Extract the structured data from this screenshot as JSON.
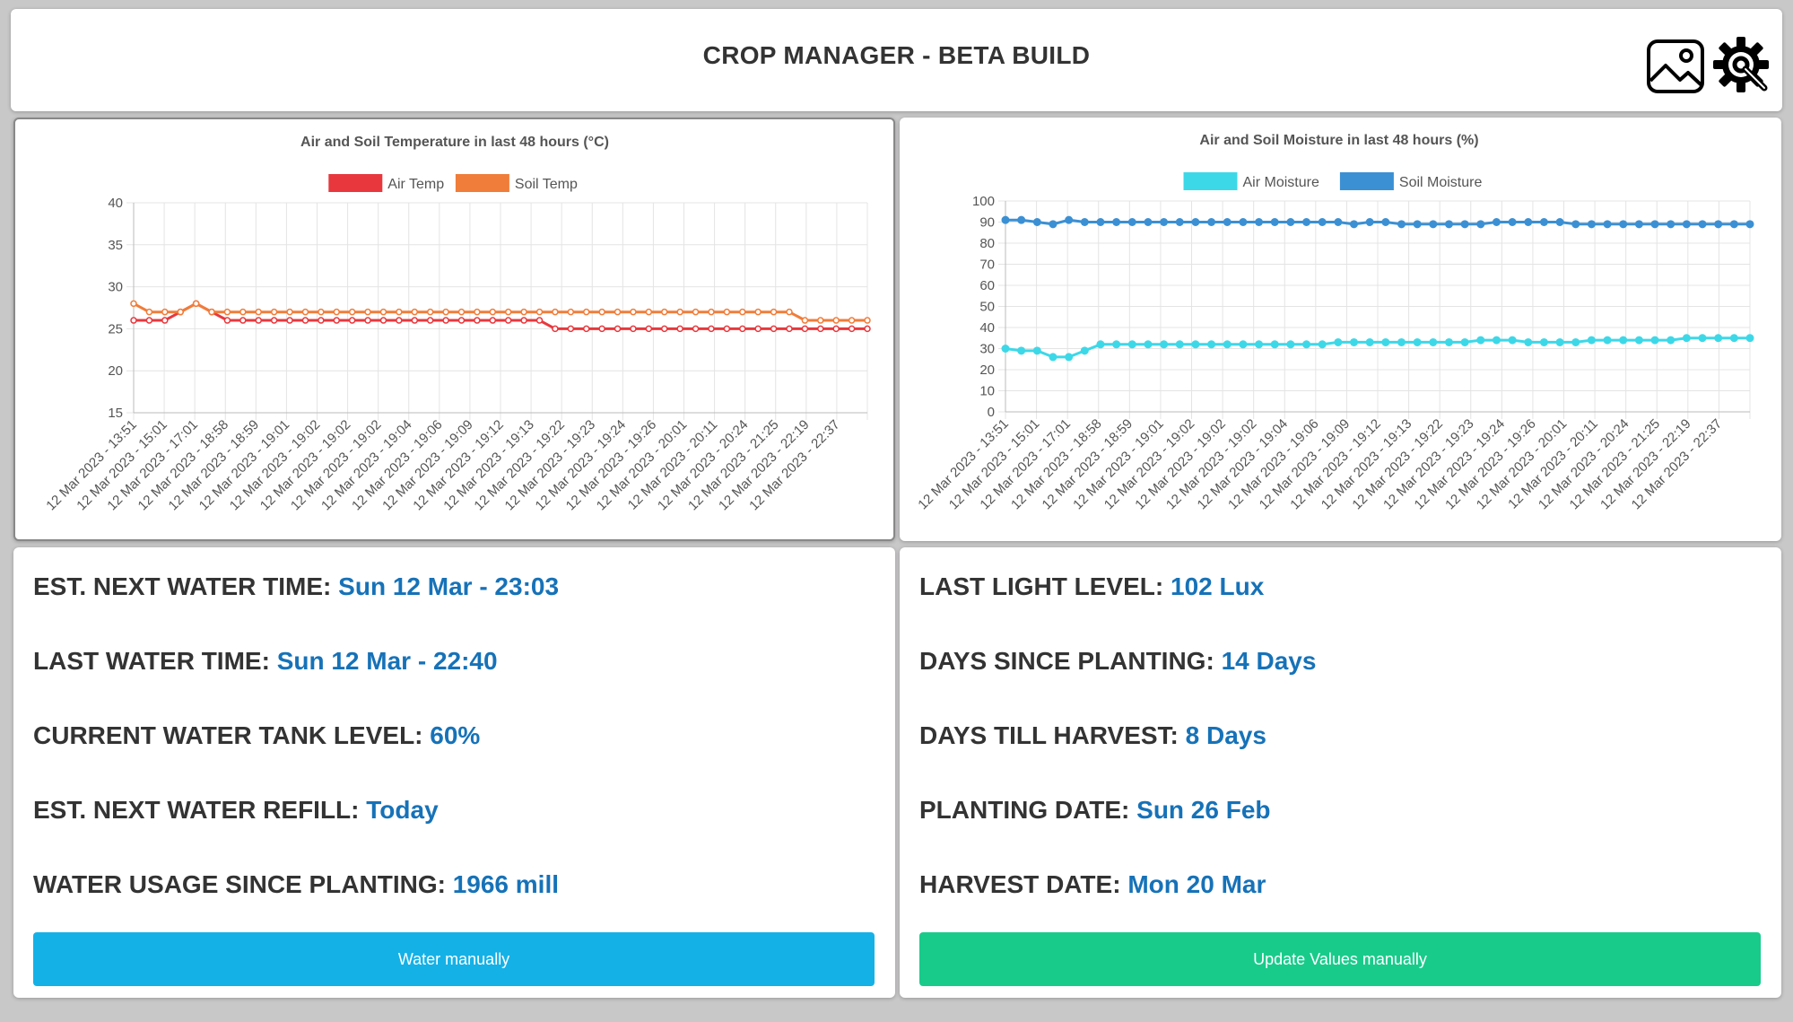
{
  "header": {
    "title": "CROP MANAGER - BETA BUILD",
    "image_icon": "image-icon",
    "settings_icon": "gear-wrench-icon"
  },
  "colors": {
    "air_temp": "#e8383d",
    "soil_temp": "#f07d3a",
    "air_moisture": "#3dd8e8",
    "soil_moisture": "#3b90d4",
    "value_text": "#1672b8",
    "water_button": "#14b1e7",
    "update_button": "#19cb8b"
  },
  "charts": [
    {
      "title": "Air and Soil Temperature in last 48 hours (°C)",
      "legend": [
        "Air Temp",
        "Soil Temp"
      ],
      "y_ticks": [
        "40",
        "35",
        "30",
        "25",
        "20",
        "15"
      ],
      "x_labels": [
        "12 Mar 2023 - 13:51",
        "12 Mar 2023 - 15:01",
        "12 Mar 2023 - 17:01",
        "12 Mar 2023 - 18:58",
        "12 Mar 2023 - 18:59",
        "12 Mar 2023 - 19:01",
        "12 Mar 2023 - 19:02",
        "12 Mar 2023 - 19:02",
        "12 Mar 2023 - 19:02",
        "12 Mar 2023 - 19:04",
        "12 Mar 2023 - 19:06",
        "12 Mar 2023 - 19:09",
        "12 Mar 2023 - 19:12",
        "12 Mar 2023 - 19:13",
        "12 Mar 2023 - 19:22",
        "12 Mar 2023 - 19:23",
        "12 Mar 2023 - 19:24",
        "12 Mar 2023 - 19:26",
        "12 Mar 2023 - 20:01",
        "12 Mar 2023 - 20:11",
        "12 Mar 2023 - 20:24",
        "12 Mar 2023 - 21:25",
        "12 Mar 2023 - 22:19",
        "12 Mar 2023 - 22:37"
      ]
    },
    {
      "title": "Air and Soil Moisture in last 48 hours (%)",
      "legend": [
        "Air Moisture",
        "Soil Moisture"
      ],
      "y_ticks": [
        "100",
        "90",
        "80",
        "70",
        "60",
        "50",
        "40",
        "30",
        "20",
        "10",
        "0"
      ],
      "x_labels": [
        "12 Mar 2023 - 13:51",
        "12 Mar 2023 - 15:01",
        "12 Mar 2023 - 17:01",
        "12 Mar 2023 - 18:58",
        "12 Mar 2023 - 18:59",
        "12 Mar 2023 - 19:01",
        "12 Mar 2023 - 19:02",
        "12 Mar 2023 - 19:02",
        "12 Mar 2023 - 19:02",
        "12 Mar 2023 - 19:04",
        "12 Mar 2023 - 19:06",
        "12 Mar 2023 - 19:09",
        "12 Mar 2023 - 19:12",
        "12 Mar 2023 - 19:13",
        "12 Mar 2023 - 19:22",
        "12 Mar 2023 - 19:23",
        "12 Mar 2023 - 19:24",
        "12 Mar 2023 - 19:26",
        "12 Mar 2023 - 20:01",
        "12 Mar 2023 - 20:11",
        "12 Mar 2023 - 20:24",
        "12 Mar 2023 - 21:25",
        "12 Mar 2023 - 22:19",
        "12 Mar 2023 - 22:37"
      ]
    }
  ],
  "chart_data": [
    {
      "type": "line",
      "title": "Air and Soil Temperature in last 48 hours (°C)",
      "ylim": [
        15,
        40
      ],
      "grid": true,
      "legend_position": "top",
      "series": [
        {
          "name": "Air Temp",
          "values": [
            26,
            26,
            26,
            27,
            28,
            27,
            26,
            26,
            26,
            26,
            26,
            26,
            26,
            26,
            26,
            26,
            26,
            26,
            26,
            26,
            26,
            26,
            26,
            26,
            26,
            26,
            26,
            25,
            25,
            25,
            25,
            25,
            25,
            25,
            25,
            25,
            25,
            25,
            25,
            25,
            25,
            25,
            25,
            25,
            25,
            25,
            25,
            25
          ]
        },
        {
          "name": "Soil Temp",
          "values": [
            28,
            27,
            27,
            27,
            28,
            27,
            27,
            27,
            27,
            27,
            27,
            27,
            27,
            27,
            27,
            27,
            27,
            27,
            27,
            27,
            27,
            27,
            27,
            27,
            27,
            27,
            27,
            27,
            27,
            27,
            27,
            27,
            27,
            27,
            27,
            27,
            27,
            27,
            27,
            27,
            27,
            27,
            27,
            26,
            26,
            26,
            26,
            26
          ]
        }
      ]
    },
    {
      "type": "line",
      "title": "Air and Soil Moisture in last 48 hours (%)",
      "ylim": [
        0,
        100
      ],
      "grid": true,
      "legend_position": "top",
      "series": [
        {
          "name": "Air Moisture",
          "values": [
            30,
            29,
            29,
            26,
            26,
            29,
            32,
            32,
            32,
            32,
            32,
            32,
            32,
            32,
            32,
            32,
            32,
            32,
            32,
            32,
            32,
            33,
            33,
            33,
            33,
            33,
            33,
            33,
            33,
            33,
            34,
            34,
            34,
            33,
            33,
            33,
            33,
            34,
            34,
            34,
            34,
            34,
            34,
            35,
            35,
            35,
            35,
            35
          ]
        },
        {
          "name": "Soil Moisture",
          "values": [
            91,
            91,
            90,
            89,
            91,
            90,
            90,
            90,
            90,
            90,
            90,
            90,
            90,
            90,
            90,
            90,
            90,
            90,
            90,
            90,
            90,
            90,
            89,
            90,
            90,
            89,
            89,
            89,
            89,
            89,
            89,
            90,
            90,
            90,
            90,
            90,
            89,
            89,
            89,
            89,
            89,
            89,
            89,
            89,
            89,
            89,
            89,
            89
          ]
        }
      ]
    }
  ],
  "water_stats": [
    {
      "label": "EST. NEXT WATER TIME:",
      "value": "Sun 12 Mar - 23:03"
    },
    {
      "label": "LAST WATER TIME:",
      "value": "Sun 12 Mar - 22:40"
    },
    {
      "label": "CURRENT WATER TANK LEVEL:",
      "value": "60%"
    },
    {
      "label": "EST. NEXT WATER REFILL:",
      "value": "Today"
    },
    {
      "label": "WATER USAGE SINCE PLANTING:",
      "value": "1966 mill"
    }
  ],
  "plant_stats": [
    {
      "label": "LAST LIGHT LEVEL:",
      "value": "102 Lux"
    },
    {
      "label": "DAYS SINCE PLANTING:",
      "value": "14 Days"
    },
    {
      "label": "DAYS TILL HARVEST:",
      "value": "8 Days"
    },
    {
      "label": "PLANTING DATE:",
      "value": "Sun 26 Feb"
    },
    {
      "label": "HARVEST DATE:",
      "value": "Mon 20 Mar"
    }
  ],
  "buttons": {
    "water_manually": "Water manually",
    "update_values": "Update Values manually"
  }
}
